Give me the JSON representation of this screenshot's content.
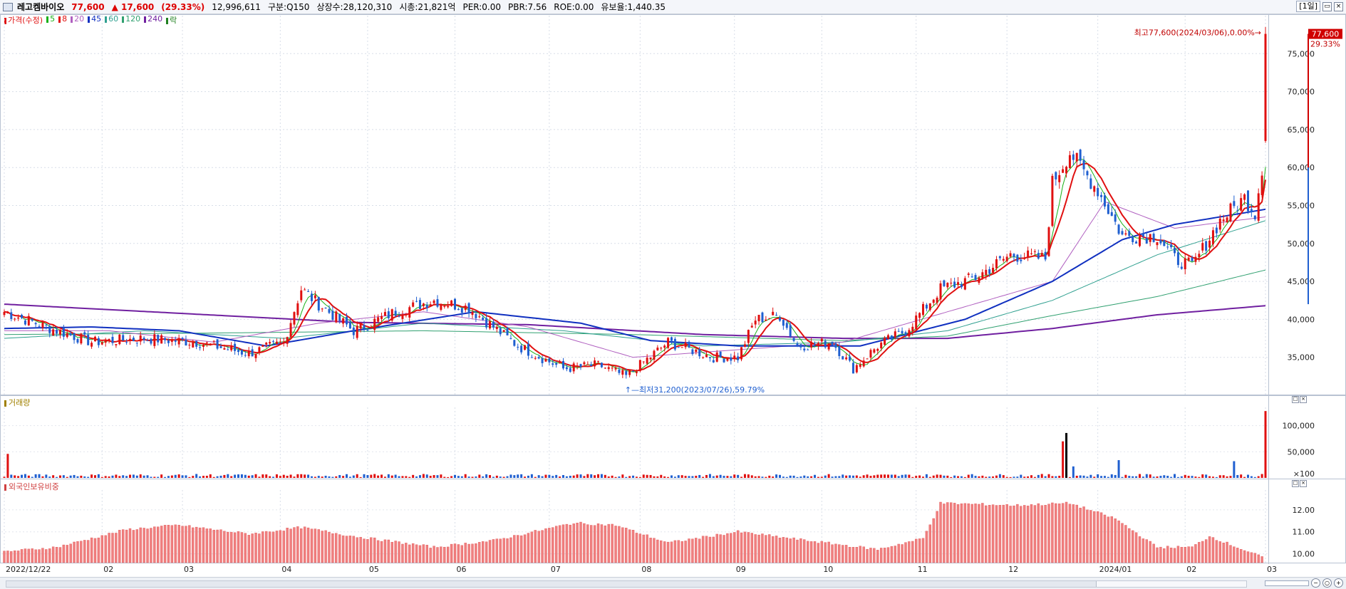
{
  "header": {
    "name": "레고켐바이오",
    "price": "77,600",
    "change": "▲ 17,600",
    "change_pct": "(29.33%)",
    "volume": "12,996,611",
    "market": "구분:Q150",
    "shares": "상장수:28,120,310",
    "mcap": "시총:21,821억",
    "per": "PER:0.00",
    "pbr": "PBR:7.56",
    "roe": "ROE:0.00",
    "float": "유보율:1,440.35",
    "period": "[1일]"
  },
  "colors": {
    "up": "#e01010",
    "down": "#1f5fd0",
    "ma5": "#18b018",
    "ma8": "#e01010",
    "ma20": "#b060c0",
    "ma45": "#1030c0",
    "ma60": "#30a090",
    "ma120": "#30a070",
    "ma240": "#7020a0",
    "foreign_bar": "#f08080"
  },
  "legend": [
    {
      "label": "가격(수정)",
      "color": "#e01010"
    },
    {
      "label": "5",
      "color": "#18b018"
    },
    {
      "label": "8",
      "color": "#e01010"
    },
    {
      "label": "20",
      "color": "#b060c0"
    },
    {
      "label": "45",
      "color": "#1030c0"
    },
    {
      "label": "60",
      "color": "#30a090"
    },
    {
      "label": "120",
      "color": "#30a070"
    },
    {
      "label": "240",
      "color": "#7020a0"
    },
    {
      "label": "락",
      "color": "#208020"
    }
  ],
  "panes": {
    "volume_title": "거래량",
    "foreign_title": "외국인보유비중"
  },
  "chart_data": [
    {
      "type": "candlestick",
      "title": "가격(수정)",
      "ylim": [
        30000,
        80000
      ],
      "y_ticks": [
        {
          "label": "75,000",
          "value": 75000
        },
        {
          "label": "70,000",
          "value": 70000
        },
        {
          "label": "65,000",
          "value": 65000
        },
        {
          "label": "60,000",
          "value": 60000
        },
        {
          "label": "55,000",
          "value": 55000
        },
        {
          "label": "50,000",
          "value": 50000
        },
        {
          "label": "45,000",
          "value": 45000
        },
        {
          "label": "40,000",
          "value": 40000
        },
        {
          "label": "35,000",
          "value": 35000
        }
      ],
      "x_labels": [
        "2022/12/22",
        "02",
        "03",
        "04",
        "05",
        "06",
        "07",
        "08",
        "09",
        "10",
        "11",
        "12",
        "2024/01",
        "02",
        "03"
      ],
      "price_anchors": [
        [
          0,
          41000
        ],
        [
          12,
          39000
        ],
        [
          25,
          37000
        ],
        [
          40,
          37500
        ],
        [
          55,
          37000
        ],
        [
          70,
          35500
        ],
        [
          80,
          37000
        ],
        [
          85,
          44000
        ],
        [
          90,
          42000
        ],
        [
          100,
          38500
        ],
        [
          112,
          41000
        ],
        [
          123,
          42500
        ],
        [
          133,
          41500
        ],
        [
          147,
          36500
        ],
        [
          160,
          33500
        ],
        [
          170,
          34000
        ],
        [
          178,
          32500
        ],
        [
          190,
          37000
        ],
        [
          203,
          35000
        ],
        [
          210,
          35000
        ],
        [
          215,
          40000
        ],
        [
          222,
          40500
        ],
        [
          227,
          36500
        ],
        [
          237,
          37000
        ],
        [
          243,
          33500
        ],
        [
          250,
          36500
        ],
        [
          258,
          38500
        ],
        [
          268,
          44000
        ],
        [
          278,
          45500
        ],
        [
          288,
          48500
        ],
        [
          298,
          48000
        ],
        [
          300,
          58000
        ],
        [
          305,
          62000
        ],
        [
          313,
          57000
        ],
        [
          320,
          51000
        ],
        [
          330,
          51000
        ],
        [
          335,
          48000
        ],
        [
          340,
          47000
        ],
        [
          348,
          53000
        ],
        [
          355,
          56000
        ],
        [
          358,
          54000
        ],
        [
          360,
          60000
        ],
        [
          361,
          77600
        ]
      ],
      "ma_anchors": {
        "ma45": [
          [
            0,
            38800
          ],
          [
            25,
            39000
          ],
          [
            50,
            38500
          ],
          [
            75,
            36500
          ],
          [
            100,
            38500
          ],
          [
            135,
            41000
          ],
          [
            165,
            39500
          ],
          [
            185,
            37200
          ],
          [
            210,
            36500
          ],
          [
            245,
            36500
          ],
          [
            275,
            40000
          ],
          [
            300,
            45000
          ],
          [
            320,
            50500
          ],
          [
            335,
            52500
          ],
          [
            361,
            54500
          ]
        ],
        "ma20": [
          [
            0,
            38500
          ],
          [
            30,
            38500
          ],
          [
            60,
            37000
          ],
          [
            90,
            39500
          ],
          [
            120,
            41000
          ],
          [
            150,
            39000
          ],
          [
            180,
            35000
          ],
          [
            210,
            36000
          ],
          [
            240,
            37000
          ],
          [
            270,
            41000
          ],
          [
            300,
            45000
          ],
          [
            315,
            55500
          ],
          [
            335,
            52000
          ],
          [
            361,
            53500
          ]
        ],
        "ma60": [
          [
            0,
            37500
          ],
          [
            40,
            38500
          ],
          [
            80,
            37500
          ],
          [
            120,
            39500
          ],
          [
            160,
            38500
          ],
          [
            200,
            36500
          ],
          [
            240,
            37000
          ],
          [
            270,
            38500
          ],
          [
            300,
            42500
          ],
          [
            330,
            48500
          ],
          [
            361,
            53000
          ]
        ],
        "ma120": [
          [
            0,
            38000
          ],
          [
            60,
            38200
          ],
          [
            120,
            38500
          ],
          [
            180,
            38000
          ],
          [
            240,
            37200
          ],
          [
            270,
            37800
          ],
          [
            300,
            40500
          ],
          [
            330,
            43000
          ],
          [
            361,
            46500
          ]
        ],
        "ma240": [
          [
            0,
            42000
          ],
          [
            50,
            40800
          ],
          [
            100,
            39600
          ],
          [
            150,
            39300
          ],
          [
            200,
            38000
          ],
          [
            240,
            37500
          ],
          [
            270,
            37500
          ],
          [
            300,
            38800
          ],
          [
            330,
            40600
          ],
          [
            361,
            41800
          ]
        ]
      },
      "annotations": [
        {
          "label": "최고77,600(2024/03/06),0.00%",
          "value": 77600
        },
        {
          "label": "최저31,200(2023/07/26),59.79%",
          "value": 31200
        }
      ],
      "last_price_label": "77,600",
      "last_pct_label": "29.33%"
    },
    {
      "type": "bar",
      "title": "거래량",
      "y_ticks": [
        {
          "label": "100,000",
          "value": 100000
        },
        {
          "label": "50,000",
          "value": 50000
        },
        {
          "label": "×100",
          "value": 0
        }
      ],
      "ylim": [
        0,
        135000
      ],
      "spikes": [
        [
          1,
          46000
        ],
        [
          303,
          70000
        ],
        [
          304,
          86000
        ],
        [
          306,
          22000
        ],
        [
          319,
          34000
        ],
        [
          352,
          32000
        ],
        [
          361,
          128000
        ]
      ]
    },
    {
      "type": "bar",
      "title": "외국인보유비중",
      "y_ticks": [
        {
          "label": "12.00",
          "value": 12.0
        },
        {
          "label": "11.00",
          "value": 11.0
        },
        {
          "label": "10.00",
          "value": 10.0
        }
      ],
      "ylim": [
        9.6,
        12.9
      ],
      "level_anchors": [
        [
          0,
          10.1
        ],
        [
          15,
          10.3
        ],
        [
          35,
          11.1
        ],
        [
          50,
          11.3
        ],
        [
          70,
          10.9
        ],
        [
          85,
          11.2
        ],
        [
          100,
          10.8
        ],
        [
          123,
          10.3
        ],
        [
          140,
          10.6
        ],
        [
          163,
          11.4
        ],
        [
          175,
          11.3
        ],
        [
          190,
          10.5
        ],
        [
          210,
          11.0
        ],
        [
          230,
          10.6
        ],
        [
          250,
          10.2
        ],
        [
          263,
          10.7
        ],
        [
          268,
          12.3
        ],
        [
          290,
          12.2
        ],
        [
          305,
          12.3
        ],
        [
          318,
          11.6
        ],
        [
          330,
          10.3
        ],
        [
          340,
          10.3
        ],
        [
          345,
          10.8
        ],
        [
          360,
          9.85
        ]
      ]
    }
  ]
}
